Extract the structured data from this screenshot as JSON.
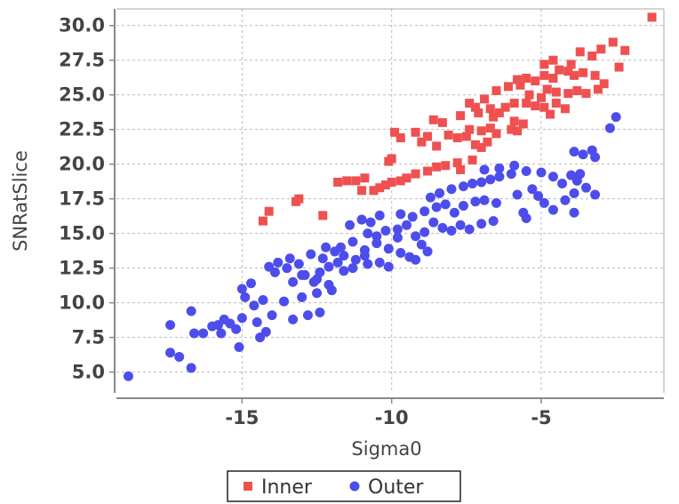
{
  "chart_data": {
    "type": "scatter",
    "xlabel": "Sigma0",
    "ylabel": "SNRatSlice",
    "xlim": [
      -19.2,
      -0.9
    ],
    "ylim": [
      3.5,
      31.2
    ],
    "x_ticks": [
      -15,
      -10,
      -5
    ],
    "y_ticks": [
      5.0,
      7.5,
      10.0,
      12.5,
      15.0,
      17.5,
      20.0,
      22.5,
      25.0,
      27.5,
      30.0
    ],
    "grid": true,
    "legend_position": "bottom",
    "series": [
      {
        "name": "Inner",
        "marker": "square",
        "color": "#ef5050",
        "points": [
          [
            -14.3,
            15.9
          ],
          [
            -14.1,
            16.6
          ],
          [
            -13.1,
            17.5
          ],
          [
            -13.2,
            17.3
          ],
          [
            -12.3,
            16.3
          ],
          [
            -11.8,
            18.7
          ],
          [
            -11.5,
            18.8
          ],
          [
            -11.2,
            18.8
          ],
          [
            -10.9,
            19.0
          ],
          [
            -11.0,
            18.1
          ],
          [
            -10.6,
            18.1
          ],
          [
            -10.4,
            18.3
          ],
          [
            -10.2,
            18.5
          ],
          [
            -10.0,
            18.7
          ],
          [
            -9.7,
            18.8
          ],
          [
            -9.5,
            19.0
          ],
          [
            -9.2,
            19.3
          ],
          [
            -8.8,
            19.5
          ],
          [
            -8.5,
            19.8
          ],
          [
            -8.2,
            19.9
          ],
          [
            -10.0,
            20.4
          ],
          [
            -10.1,
            20.2
          ],
          [
            -7.8,
            20.1
          ],
          [
            -7.3,
            20.3
          ],
          [
            -7.7,
            19.6
          ],
          [
            -9.9,
            22.3
          ],
          [
            -9.7,
            21.9
          ],
          [
            -9.2,
            22.3
          ],
          [
            -9.0,
            21.6
          ],
          [
            -8.8,
            22.0
          ],
          [
            -8.5,
            21.3
          ],
          [
            -8.1,
            22.1
          ],
          [
            -7.8,
            21.9
          ],
          [
            -7.5,
            22.0
          ],
          [
            -7.4,
            22.5
          ],
          [
            -7.0,
            22.4
          ],
          [
            -6.7,
            22.6
          ],
          [
            -6.5,
            22.2
          ],
          [
            -6.0,
            22.5
          ],
          [
            -5.8,
            22.4
          ],
          [
            -5.6,
            22.9
          ],
          [
            -7.2,
            21.4
          ],
          [
            -7.0,
            21.2
          ],
          [
            -6.8,
            21.6
          ],
          [
            -8.3,
            23.0
          ],
          [
            -8.6,
            23.2
          ],
          [
            -7.7,
            23.5
          ],
          [
            -7.1,
            23.7
          ],
          [
            -6.7,
            24.0
          ],
          [
            -6.4,
            23.7
          ],
          [
            -6.2,
            24.1
          ],
          [
            -5.9,
            24.4
          ],
          [
            -5.5,
            24.4
          ],
          [
            -5.2,
            24.2
          ],
          [
            -4.9,
            24.1
          ],
          [
            -4.7,
            23.6
          ],
          [
            -4.5,
            24.4
          ],
          [
            -4.2,
            24.0
          ],
          [
            -7.4,
            24.4
          ],
          [
            -7.2,
            24.1
          ],
          [
            -6.9,
            24.7
          ],
          [
            -6.5,
            25.3
          ],
          [
            -6.1,
            25.6
          ],
          [
            -5.7,
            25.7
          ],
          [
            -5.4,
            25.0
          ],
          [
            -5.0,
            24.8
          ],
          [
            -4.8,
            25.4
          ],
          [
            -4.5,
            25.2
          ],
          [
            -4.1,
            25.1
          ],
          [
            -3.8,
            25.3
          ],
          [
            -3.5,
            25.1
          ],
          [
            -3.1,
            25.4
          ],
          [
            -2.9,
            25.8
          ],
          [
            -5.8,
            26.1
          ],
          [
            -5.5,
            26.2
          ],
          [
            -5.2,
            26.0
          ],
          [
            -4.9,
            26.4
          ],
          [
            -4.6,
            26.2
          ],
          [
            -4.4,
            26.8
          ],
          [
            -4.1,
            26.7
          ],
          [
            -3.9,
            26.4
          ],
          [
            -3.6,
            26.6
          ],
          [
            -3.2,
            26.4
          ],
          [
            -4.9,
            27.2
          ],
          [
            -4.6,
            27.5
          ],
          [
            -3.7,
            28.1
          ],
          [
            -3.3,
            27.8
          ],
          [
            -3.0,
            28.3
          ],
          [
            -2.6,
            28.8
          ],
          [
            -2.2,
            28.2
          ],
          [
            -2.4,
            27.0
          ],
          [
            -4.0,
            27.2
          ],
          [
            -1.3,
            30.6
          ],
          [
            -6.6,
            23.4
          ],
          [
            -5.9,
            23.1
          ]
        ]
      },
      {
        "name": "Outer",
        "marker": "circle",
        "color": "#4d4dec",
        "points": [
          [
            -18.8,
            4.7
          ],
          [
            -16.7,
            5.3
          ],
          [
            -17.1,
            6.1
          ],
          [
            -17.4,
            6.4
          ],
          [
            -15.1,
            6.8
          ],
          [
            -16.6,
            7.8
          ],
          [
            -16.3,
            7.8
          ],
          [
            -15.7,
            7.8
          ],
          [
            -15.2,
            8.1
          ],
          [
            -14.4,
            7.5
          ],
          [
            -14.2,
            7.9
          ],
          [
            -15.4,
            8.5
          ],
          [
            -15.8,
            8.4
          ],
          [
            -15.6,
            8.8
          ],
          [
            -16.0,
            8.3
          ],
          [
            -15.0,
            8.9
          ],
          [
            -14.5,
            8.6
          ],
          [
            -14.0,
            9.1
          ],
          [
            -13.3,
            8.8
          ],
          [
            -12.8,
            9.1
          ],
          [
            -12.4,
            9.3
          ],
          [
            -14.6,
            9.8
          ],
          [
            -14.9,
            10.4
          ],
          [
            -14.3,
            10.2
          ],
          [
            -13.6,
            10.1
          ],
          [
            -13.0,
            10.4
          ],
          [
            -12.5,
            10.7
          ],
          [
            -12.0,
            10.9
          ],
          [
            -16.7,
            9.4
          ],
          [
            -17.4,
            8.4
          ],
          [
            -15.0,
            11.0
          ],
          [
            -14.7,
            11.4
          ],
          [
            -13.3,
            11.5
          ],
          [
            -12.6,
            11.5
          ],
          [
            -12.1,
            11.3
          ],
          [
            -13.9,
            12.2
          ],
          [
            -13.5,
            12.5
          ],
          [
            -13.1,
            12.8
          ],
          [
            -12.9,
            12.0
          ],
          [
            -12.4,
            12.2
          ],
          [
            -12.1,
            12.6
          ],
          [
            -11.6,
            12.3
          ],
          [
            -11.3,
            12.5
          ],
          [
            -11.8,
            12.9
          ],
          [
            -12.3,
            13.2
          ],
          [
            -11.6,
            13.4
          ],
          [
            -11.2,
            13.1
          ],
          [
            -10.8,
            12.8
          ],
          [
            -10.4,
            12.9
          ],
          [
            -10.1,
            12.6
          ],
          [
            -13.8,
            12.9
          ],
          [
            -14.1,
            12.6
          ],
          [
            -13.4,
            13.2
          ],
          [
            -12.7,
            13.5
          ],
          [
            -12.2,
            14.0
          ],
          [
            -11.7,
            14.0
          ],
          [
            -11.3,
            14.4
          ],
          [
            -10.9,
            13.8
          ],
          [
            -10.5,
            14.3
          ],
          [
            -10.1,
            13.9
          ],
          [
            -9.7,
            13.6
          ],
          [
            -9.4,
            13.3
          ],
          [
            -9.2,
            13.1
          ],
          [
            -8.8,
            13.7
          ],
          [
            -10.5,
            14.8
          ],
          [
            -10.8,
            15.0
          ],
          [
            -10.2,
            15.2
          ],
          [
            -9.8,
            15.3
          ],
          [
            -9.5,
            15.6
          ],
          [
            -9.2,
            14.8
          ],
          [
            -8.9,
            15.1
          ],
          [
            -8.6,
            15.8
          ],
          [
            -8.3,
            15.4
          ],
          [
            -8.0,
            15.2
          ],
          [
            -7.7,
            15.6
          ],
          [
            -7.4,
            15.3
          ],
          [
            -7.0,
            15.7
          ],
          [
            -6.6,
            15.9
          ],
          [
            -9.7,
            16.4
          ],
          [
            -9.3,
            16.2
          ],
          [
            -8.9,
            16.6
          ],
          [
            -8.5,
            16.9
          ],
          [
            -8.2,
            17.1
          ],
          [
            -7.9,
            16.5
          ],
          [
            -7.6,
            17.0
          ],
          [
            -7.2,
            17.3
          ],
          [
            -6.9,
            17.4
          ],
          [
            -6.5,
            17.2
          ],
          [
            -8.7,
            17.6
          ],
          [
            -8.4,
            17.9
          ],
          [
            -8.0,
            18.2
          ],
          [
            -7.6,
            18.4
          ],
          [
            -7.3,
            18.6
          ],
          [
            -7.0,
            18.7
          ],
          [
            -6.7,
            18.9
          ],
          [
            -6.4,
            19.1
          ],
          [
            -6.0,
            19.3
          ],
          [
            -6.9,
            19.6
          ],
          [
            -6.4,
            19.7
          ],
          [
            -5.9,
            19.9
          ],
          [
            -5.5,
            19.5
          ],
          [
            -5.0,
            19.4
          ],
          [
            -4.6,
            19.1
          ],
          [
            -4.3,
            18.6
          ],
          [
            -4.0,
            19.2
          ],
          [
            -3.8,
            18.8
          ],
          [
            -5.3,
            18.2
          ],
          [
            -5.1,
            17.7
          ],
          [
            -4.9,
            17.2
          ],
          [
            -4.6,
            16.7
          ],
          [
            -4.2,
            17.4
          ],
          [
            -3.9,
            17.9
          ],
          [
            -3.5,
            18.3
          ],
          [
            -3.2,
            17.8
          ],
          [
            -5.6,
            16.5
          ],
          [
            -5.5,
            16.1
          ],
          [
            -5.8,
            17.8
          ],
          [
            -3.9,
            16.5
          ],
          [
            -3.9,
            20.9
          ],
          [
            -3.6,
            20.7
          ],
          [
            -3.3,
            21.0
          ],
          [
            -3.2,
            20.5
          ],
          [
            -2.7,
            22.6
          ],
          [
            -2.5,
            23.4
          ],
          [
            -3.7,
            19.3
          ],
          [
            -10.4,
            16.3
          ],
          [
            -11.0,
            16.0
          ],
          [
            -11.4,
            15.6
          ],
          [
            -10.7,
            15.8
          ],
          [
            -9.0,
            14.2
          ],
          [
            -9.8,
            14.7
          ],
          [
            -13.0,
            12.0
          ],
          [
            -12.5,
            11.7
          ],
          [
            -10.9,
            13.4
          ],
          [
            -11.9,
            13.7
          ]
        ]
      }
    ]
  }
}
